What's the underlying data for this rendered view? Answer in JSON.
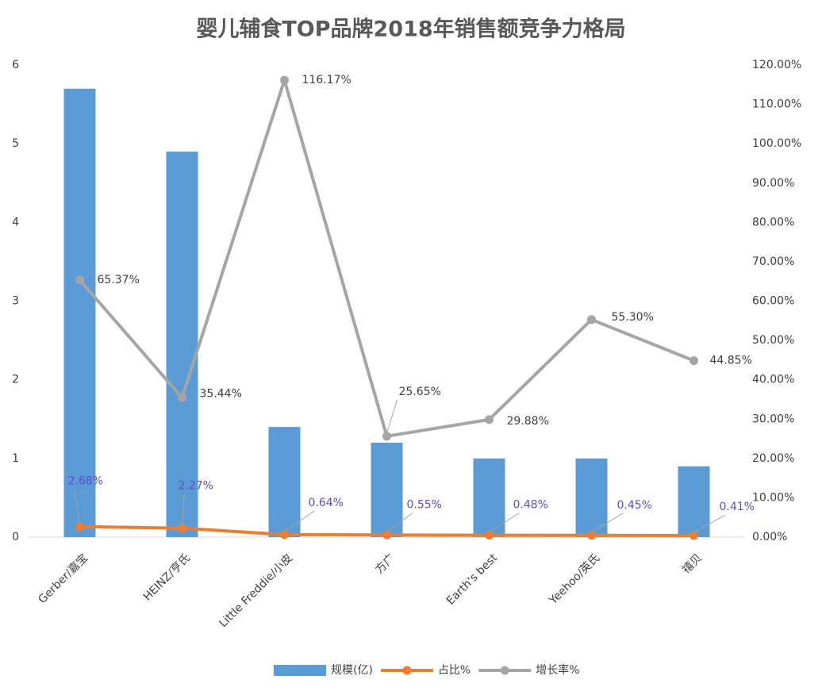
{
  "chart_data": {
    "type": "bar-line",
    "title": "婴儿辅食TOP品牌2018年销售额竞争力格局",
    "categories": [
      "Gerber/嘉宝",
      "HEINZ/亨氏",
      "Little Freddie/小皮",
      "方广",
      "Earth's best",
      "Yeehoo/英氏",
      "禧贝"
    ],
    "series": [
      {
        "name": "规模(亿)",
        "kind": "bar",
        "color": "#5b9bd5",
        "values": [
          5.7,
          4.9,
          1.4,
          1.2,
          1.0,
          1.0,
          0.9
        ]
      },
      {
        "name": "占比%",
        "kind": "line",
        "axis": "y2",
        "color": "#ed7d31",
        "values": [
          2.68,
          2.27,
          0.64,
          0.55,
          0.48,
          0.45,
          0.41
        ],
        "value_labels": [
          "2.68%",
          "2.27%",
          "0.64%",
          "0.55%",
          "0.48%",
          "0.45%",
          "0.41%"
        ]
      },
      {
        "name": "增长率%",
        "kind": "line",
        "axis": "y2",
        "color": "#a5a5a5",
        "values": [
          65.37,
          35.44,
          116.17,
          25.65,
          29.88,
          55.3,
          44.85
        ],
        "value_labels": [
          "65.37%",
          "35.44%",
          "116.17%",
          "25.65%",
          "29.88%",
          "55.30%",
          "44.85%"
        ]
      }
    ],
    "ylim": [
      0,
      6
    ],
    "yticks": [
      0,
      1,
      2,
      3,
      4,
      5,
      6
    ],
    "y2lim": [
      0,
      120
    ],
    "y2ticks": [
      {
        "value": 0,
        "label": "0.00%"
      },
      {
        "value": 10,
        "label": "10.00%"
      },
      {
        "value": 20,
        "label": "20.00%"
      },
      {
        "value": 30,
        "label": "30.00%"
      },
      {
        "value": 40,
        "label": "40.00%"
      },
      {
        "value": 50,
        "label": "50.00%"
      },
      {
        "value": 60,
        "label": "60.00%"
      },
      {
        "value": 70,
        "label": "70.00%"
      },
      {
        "value": 80,
        "label": "80.00%"
      },
      {
        "value": 90,
        "label": "90.00%"
      },
      {
        "value": 100,
        "label": "100.00%"
      },
      {
        "value": 110,
        "label": "110.00%"
      },
      {
        "value": 120,
        "label": "120.00%"
      }
    ],
    "grid": false,
    "legend": "bottom"
  }
}
